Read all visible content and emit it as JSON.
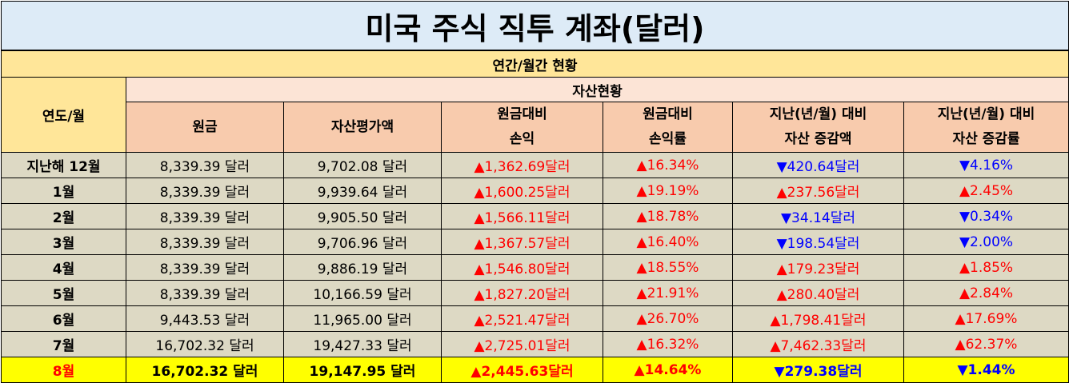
{
  "title": "미국 주식 직투 계좌(달러)",
  "section": "연간/월간 현황",
  "header": {
    "year_month": "연도/월",
    "asset_status": "자산현황",
    "columns": [
      {
        "line1": "원금",
        "line2": ""
      },
      {
        "line1": "자산평가액",
        "line2": ""
      },
      {
        "line1": "원금대비",
        "line2": "손익"
      },
      {
        "line1": "원금대비",
        "line2": "손익률"
      },
      {
        "line1": "지난(년/월) 대비",
        "line2": "자산 증감액"
      },
      {
        "line1": "지난(년/월) 대비",
        "line2": "자산 증감률"
      }
    ]
  },
  "rows": [
    {
      "label": "지난해 12월",
      "principal": "8,339.39 달러",
      "valuation": "9,702.08 달러",
      "pnl": "▲1,362.69달러",
      "pnl_dir": "up",
      "pnl_rate": "▲16.34%",
      "pnl_rate_dir": "up",
      "change": "▼420.64달러",
      "change_dir": "down",
      "change_rate": "▼4.16%",
      "change_rate_dir": "down"
    },
    {
      "label": "1월",
      "principal": "8,339.39 달러",
      "valuation": "9,939.64 달러",
      "pnl": "▲1,600.25달러",
      "pnl_dir": "up",
      "pnl_rate": "▲19.19%",
      "pnl_rate_dir": "up",
      "change": "▲237.56달러",
      "change_dir": "up",
      "change_rate": "▲2.45%",
      "change_rate_dir": "up"
    },
    {
      "label": "2월",
      "principal": "8,339.39 달러",
      "valuation": "9,905.50 달러",
      "pnl": "▲1,566.11달러",
      "pnl_dir": "up",
      "pnl_rate": "▲18.78%",
      "pnl_rate_dir": "up",
      "change": "▼34.14달러",
      "change_dir": "down",
      "change_rate": "▼0.34%",
      "change_rate_dir": "down"
    },
    {
      "label": "3월",
      "principal": "8,339.39 달러",
      "valuation": "9,706.96 달러",
      "pnl": "▲1,367.57달러",
      "pnl_dir": "up",
      "pnl_rate": "▲16.40%",
      "pnl_rate_dir": "up",
      "change": "▼198.54달러",
      "change_dir": "down",
      "change_rate": "▼2.00%",
      "change_rate_dir": "down"
    },
    {
      "label": "4월",
      "principal": "8,339.39 달러",
      "valuation": "9,886.19 달러",
      "pnl": "▲1,546.80달러",
      "pnl_dir": "up",
      "pnl_rate": "▲18.55%",
      "pnl_rate_dir": "up",
      "change": "▲179.23달러",
      "change_dir": "up",
      "change_rate": "▲1.85%",
      "change_rate_dir": "up"
    },
    {
      "label": "5월",
      "principal": "8,339.39 달러",
      "valuation": "10,166.59 달러",
      "pnl": "▲1,827.20달러",
      "pnl_dir": "up",
      "pnl_rate": "▲21.91%",
      "pnl_rate_dir": "up",
      "change": "▲280.40달러",
      "change_dir": "up",
      "change_rate": "▲2.84%",
      "change_rate_dir": "up"
    },
    {
      "label": "6월",
      "principal": "9,443.53 달러",
      "valuation": "11,965.00 달러",
      "pnl": "▲2,521.47달러",
      "pnl_dir": "up",
      "pnl_rate": "▲26.70%",
      "pnl_rate_dir": "up",
      "change": "▲1,798.41달러",
      "change_dir": "up",
      "change_rate": "▲17.69%",
      "change_rate_dir": "up"
    },
    {
      "label": "7월",
      "principal": "16,702.32 달러",
      "valuation": "19,427.33 달러",
      "pnl": "▲2,725.01달러",
      "pnl_dir": "up",
      "pnl_rate": "▲16.32%",
      "pnl_rate_dir": "up",
      "change": "▲7,462.33달러",
      "change_dir": "up",
      "change_rate": "▲62.37%",
      "change_rate_dir": "up"
    },
    {
      "label": "8월",
      "principal": "16,702.32 달러",
      "valuation": "19,147.95 달러",
      "pnl": "▲2,445.63달러",
      "pnl_dir": "up",
      "pnl_rate": "▲14.64%",
      "pnl_rate_dir": "up",
      "change": "▼279.38달러",
      "change_dir": "down",
      "change_rate": "▼1.44%",
      "change_rate_dir": "down",
      "highlight": true
    }
  ],
  "colors": {
    "title_bg": "#ddebf7",
    "section_bg": "#ffe699",
    "header_bg": "#f8cbad",
    "row_bg": "#ddd9c4",
    "highlight_bg": "#ffff00",
    "up": "#ff0000",
    "down": "#0000ff"
  }
}
